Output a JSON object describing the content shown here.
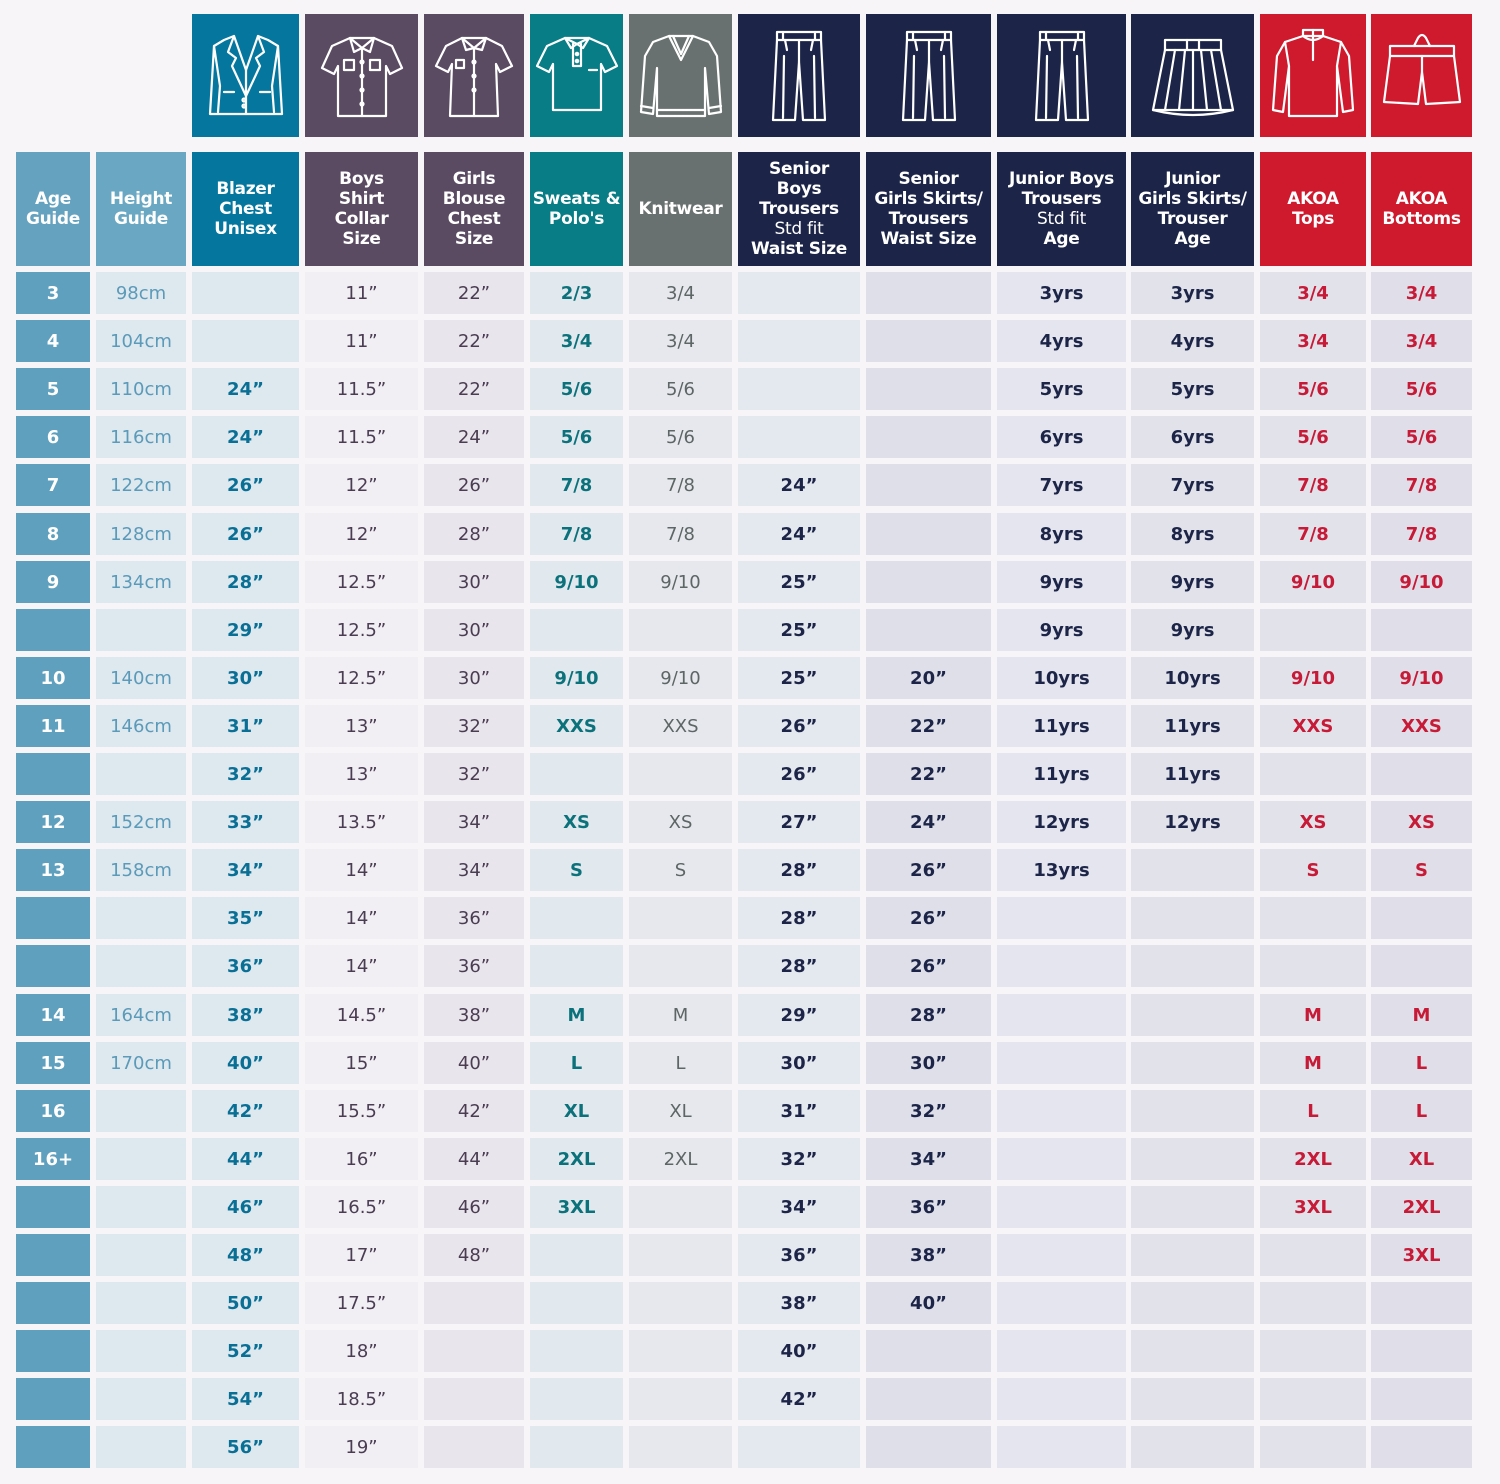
{
  "columns": [
    {
      "key": "age",
      "header": "Age\nGuide",
      "icon": "",
      "color": "#64a2bf",
      "cell_bg": "#5fa0be",
      "text": "#ffffff"
    },
    {
      "key": "height",
      "header": "Height\nGuide",
      "icon": "",
      "color": "#6aa7c2",
      "cell_bg": "#dde8ef",
      "text": "#5b9ab8"
    },
    {
      "key": "blazer",
      "header": "Blazer\nChest\nUnisex",
      "icon": "blazer-icon",
      "color": "#05779f",
      "cell_bg": "#dde8ef",
      "text": "#0a6f95"
    },
    {
      "key": "boys_shirt",
      "header": "Boys\nShirt\nCollar\nSize",
      "icon": "shirt-icon",
      "color": "#5a4b63",
      "cell_bg": "#f1eef4",
      "text": "#4a3d52"
    },
    {
      "key": "girls_blouse",
      "header": "Girls\nBlouse\nChest\nSize",
      "icon": "blouse-icon",
      "color": "#5a4b63",
      "cell_bg": "#e9e5ec",
      "text": "#4a3d52"
    },
    {
      "key": "sweats",
      "header": "Sweats &\nPolo's",
      "icon": "polo-icon",
      "color": "#087d86",
      "cell_bg": "#e1e8ee",
      "text": "#0b727b"
    },
    {
      "key": "knitwear",
      "header": "Knitwear",
      "icon": "jumper-icon",
      "color": "#697170",
      "cell_bg": "#e6e8ee",
      "text": "#5d6664"
    },
    {
      "key": "senior_boys",
      "header": "Senior\nBoys\nTrousers\nStd fit\nWaist Size",
      "icon": "trousers-icon",
      "color": "#1c2548",
      "cell_bg": "#e4e8ef",
      "text": "#1c2548"
    },
    {
      "key": "senior_girls",
      "header": "Senior\nGirls Skirts/\nTrousers\nWaist Size",
      "icon": "trousers-icon",
      "color": "#1c2548",
      "cell_bg": "#dfdfea",
      "text": "#1c2548"
    },
    {
      "key": "junior_boys",
      "header": "Junior Boys\nTrousers\nStd fit\nAge",
      "icon": "trousers-icon",
      "color": "#1c2548",
      "cell_bg": "#e4e5ee",
      "text": "#1c2548"
    },
    {
      "key": "junior_girls",
      "header": "Junior\nGirls Skirts/\nTrouser\nAge",
      "icon": "skirt-icon",
      "color": "#1c2548",
      "cell_bg": "#e2e2eb",
      "text": "#1c2548"
    },
    {
      "key": "akoa_tops",
      "header": "AKOA\nTops",
      "icon": "sports-top-icon",
      "color": "#cf1a2d",
      "cell_bg": "#e2e2eb",
      "text": "#c71a37"
    },
    {
      "key": "akoa_bottoms",
      "header": "AKOA\nBottoms",
      "icon": "shorts-icon",
      "color": "#cf1a2d",
      "cell_bg": "#e0dfe9",
      "text": "#c71a37"
    }
  ],
  "rows": [
    [
      "3",
      "98cm",
      "",
      "11”",
      "22”",
      "2/3",
      "3/4",
      "",
      "",
      "3yrs",
      "3yrs",
      "3/4",
      "3/4"
    ],
    [
      "4",
      "104cm",
      "",
      "11”",
      "22”",
      "3/4",
      "3/4",
      "",
      "",
      "4yrs",
      "4yrs",
      "3/4",
      "3/4"
    ],
    [
      "5",
      "110cm",
      "24”",
      "11.5”",
      "22”",
      "5/6",
      "5/6",
      "",
      "",
      "5yrs",
      "5yrs",
      "5/6",
      "5/6"
    ],
    [
      "6",
      "116cm",
      "24”",
      "11.5”",
      "24”",
      "5/6",
      "5/6",
      "",
      "",
      "6yrs",
      "6yrs",
      "5/6",
      "5/6"
    ],
    [
      "7",
      "122cm",
      "26”",
      "12”",
      "26”",
      "7/8",
      "7/8",
      "24”",
      "",
      "7yrs",
      "7yrs",
      "7/8",
      "7/8"
    ],
    [
      "8",
      "128cm",
      "26”",
      "12”",
      "28”",
      "7/8",
      "7/8",
      "24”",
      "",
      "8yrs",
      "8yrs",
      "7/8",
      "7/8"
    ],
    [
      "9",
      "134cm",
      "28”",
      "12.5”",
      "30”",
      "9/10",
      "9/10",
      "25”",
      "",
      "9yrs",
      "9yrs",
      "9/10",
      "9/10"
    ],
    [
      "",
      "",
      "29”",
      "12.5”",
      "30”",
      "",
      "",
      "25”",
      "",
      "9yrs",
      "9yrs",
      "",
      ""
    ],
    [
      "10",
      "140cm",
      "30”",
      "12.5”",
      "30”",
      "9/10",
      "9/10",
      "25”",
      "20”",
      "10yrs",
      "10yrs",
      "9/10",
      "9/10"
    ],
    [
      "11",
      "146cm",
      "31”",
      "13”",
      "32”",
      "XXS",
      "XXS",
      "26”",
      "22”",
      "11yrs",
      "11yrs",
      "XXS",
      "XXS"
    ],
    [
      "",
      "",
      "32”",
      "13”",
      "32”",
      "",
      "",
      "26”",
      "22”",
      "11yrs",
      "11yrs",
      "",
      ""
    ],
    [
      "12",
      "152cm",
      "33”",
      "13.5”",
      "34”",
      "XS",
      "XS",
      "27”",
      "24”",
      "12yrs",
      "12yrs",
      "XS",
      "XS"
    ],
    [
      "13",
      "158cm",
      "34”",
      "14”",
      "34”",
      "S",
      "S",
      "28”",
      "26”",
      "13yrs",
      "",
      "S",
      "S"
    ],
    [
      "",
      "",
      "35”",
      "14”",
      "36”",
      "",
      "",
      "28”",
      "26”",
      "",
      "",
      "",
      ""
    ],
    [
      "",
      "",
      "36”",
      "14”",
      "36”",
      "",
      "",
      "28”",
      "26”",
      "",
      "",
      "",
      ""
    ],
    [
      "14",
      "164cm",
      "38”",
      "14.5”",
      "38”",
      "M",
      "M",
      "29”",
      "28”",
      "",
      "",
      "M",
      "M"
    ],
    [
      "15",
      "170cm",
      "40”",
      "15”",
      "40”",
      "L",
      "L",
      "30”",
      "30”",
      "",
      "",
      "M",
      "L"
    ],
    [
      "16",
      "",
      "42”",
      "15.5”",
      "42”",
      "XL",
      "XL",
      "31”",
      "32”",
      "",
      "",
      "L",
      "L"
    ],
    [
      "16+",
      "",
      "44”",
      "16”",
      "44”",
      "2XL",
      "2XL",
      "32”",
      "34”",
      "",
      "",
      "2XL",
      "XL"
    ],
    [
      "",
      "",
      "46”",
      "16.5”",
      "46”",
      "3XL",
      "",
      "34”",
      "36”",
      "",
      "",
      "3XL",
      "2XL"
    ],
    [
      "",
      "",
      "48”",
      "17”",
      "48”",
      "",
      "",
      "36”",
      "38”",
      "",
      "",
      "",
      "3XL"
    ],
    [
      "",
      "",
      "50”",
      "17.5”",
      "",
      "",
      "",
      "38”",
      "40”",
      "",
      "",
      "",
      ""
    ],
    [
      "",
      "",
      "52”",
      "18”",
      "",
      "",
      "",
      "40”",
      "",
      "",
      "",
      "",
      ""
    ],
    [
      "",
      "",
      "54”",
      "18.5”",
      "",
      "",
      "",
      "42”",
      "",
      "",
      "",
      "",
      ""
    ],
    [
      "",
      "",
      "56”",
      "19”",
      "",
      "",
      "",
      "",
      "",
      "",
      "",
      "",
      ""
    ]
  ]
}
